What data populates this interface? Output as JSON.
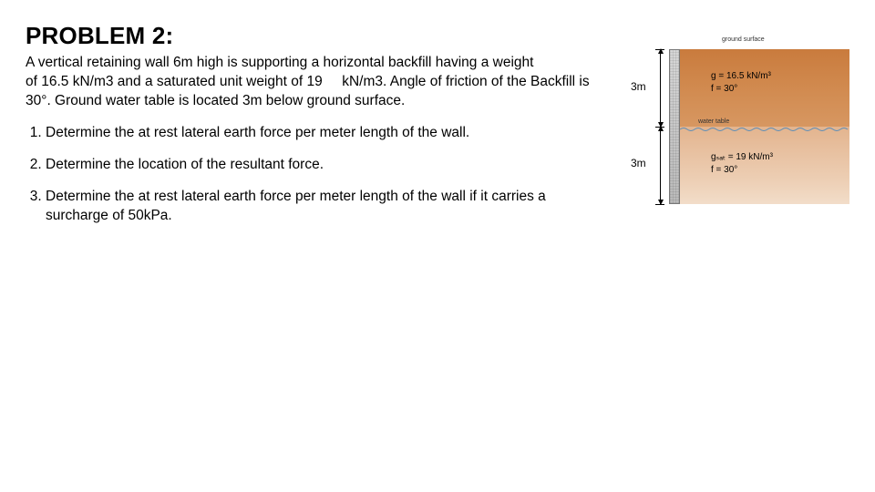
{
  "title": "PROBLEM 2:",
  "paragraph_html": "A vertical retaining wall 6m high is supporting a horizontal backfill having a weight<br>of 16.5 kN/m3 and a saturated unit weight of 19&nbsp;&nbsp;&nbsp;&nbsp;&nbsp;kN/m3. Angle of friction of the Backfill is 30°. Ground water table is located 3m below ground surface.",
  "questions": [
    "Determine the at rest lateral earth force per meter length of the wall.",
    "Determine the location of the resultant force.",
    "Determine the at rest lateral earth force per meter length of the wall if it carries a surcharge of 50kPa."
  ],
  "diagram": {
    "ground_surface_label": "ground surface",
    "water_table_label": "water table",
    "dim_upper": "3m",
    "dim_lower": "3m",
    "layer_upper_line1": "g = 16.5 kN/m³",
    "layer_upper_line2": "f  = 30°",
    "layer_lower_line1": "gₛₐₜ = 19 kN/m³",
    "layer_lower_line2": "f  = 30°",
    "colors": {
      "soil_upper_top": "#c97b3d",
      "soil_upper_bot": "#d79761",
      "soil_lower_top": "#e3b48e",
      "soil_lower_bot": "#f2ddc9",
      "wall": "#bdbdbd",
      "water": "#6fa8dc"
    }
  }
}
